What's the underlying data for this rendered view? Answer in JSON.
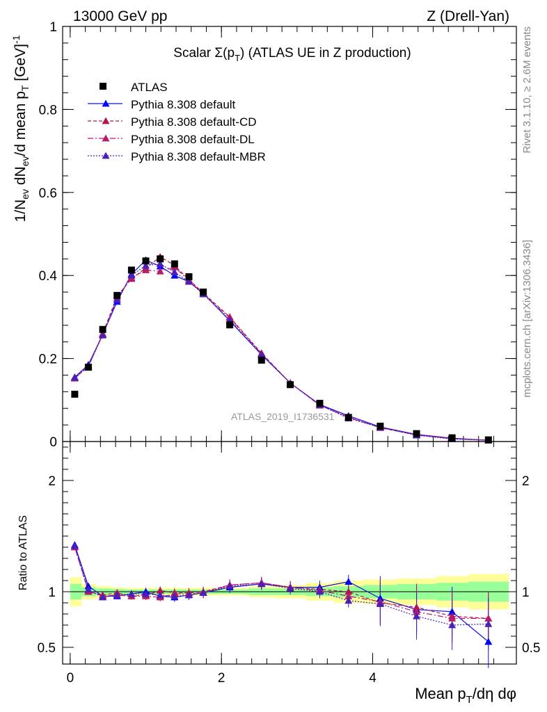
{
  "header": {
    "left": "13000 GeV pp",
    "right": "Z (Drell-Yan)"
  },
  "side": {
    "rivet": "Rivet 3.1.10, ≥ 2.6M events",
    "mcplots": "mcplots.cern.ch [arXiv:1306.3436]"
  },
  "watermark": "ATLAS_2019_I1736531",
  "chart_data": {
    "type": "scatter",
    "title": "Scalar Σ(pT) (ATLAS UE in Z production)",
    "xlabel": "Mean pT/dη dφ",
    "ylabel": "1/Nev dNev/d mean pT [GeV]⁻¹",
    "ratio_ylabel": "Ratio to ATLAS",
    "xlim": [
      -0.1,
      5.9
    ],
    "ylim": [
      0,
      1.0
    ],
    "ratio_ylim": [
      0.35,
      2.35
    ],
    "x_ticks": [
      "0",
      "2",
      "4"
    ],
    "y_ticks": [
      "0",
      "0.2",
      "0.4",
      "0.6",
      "0.8",
      "1"
    ],
    "ratio_ticks": [
      "0.5",
      "1",
      "2"
    ],
    "x": [
      0.06,
      0.24,
      0.43,
      0.62,
      0.81,
      1.0,
      1.19,
      1.38,
      1.57,
      1.76,
      2.11,
      2.53,
      2.91,
      3.3,
      3.68,
      4.1,
      4.58,
      5.05,
      5.53
    ],
    "atlas": [
      0.114,
      0.179,
      0.27,
      0.352,
      0.413,
      0.435,
      0.44,
      0.428,
      0.397,
      0.36,
      0.281,
      0.196,
      0.137,
      0.092,
      0.058,
      0.037,
      0.019,
      0.009,
      0.004
    ],
    "series": [
      {
        "name": "Pythia 8.308 default",
        "color": "#1010e0",
        "dash": "",
        "marker": "#0000ff",
        "values": [
          0.155,
          0.185,
          0.258,
          0.337,
          0.403,
          0.437,
          0.422,
          0.4,
          0.385,
          0.357,
          0.291,
          0.209,
          0.141,
          0.089,
          0.062,
          0.035,
          0.017,
          0.008,
          0.003
        ],
        "ratio": [
          1.42,
          1.05,
          0.96,
          0.96,
          0.98,
          1.0,
          0.96,
          0.95,
          0.97,
          0.99,
          1.04,
          1.07,
          1.04,
          1.04,
          1.09,
          0.94,
          0.84,
          0.82,
          0.55
        ]
      },
      {
        "name": "Pythia 8.308 default-CD",
        "color": "#b0154f",
        "dash": "5,3",
        "marker": "#b0154f",
        "values": [
          0.153,
          0.18,
          0.26,
          0.35,
          0.392,
          0.418,
          0.445,
          0.424,
          0.39,
          0.358,
          0.3,
          0.213,
          0.141,
          0.087,
          0.059,
          0.033,
          0.016,
          0.007,
          0.003
        ],
        "ratio": [
          1.4,
          1.0,
          0.97,
          0.99,
          0.96,
          0.97,
          1.01,
          0.99,
          0.99,
          1.0,
          1.06,
          1.08,
          1.04,
          1.02,
          1.0,
          0.9,
          0.86,
          0.78,
          0.76
        ]
      },
      {
        "name": "Pythia 8.308 default-DL",
        "color": "#c0107a",
        "dash": "8,3,2,3",
        "marker": "#b51d6a",
        "values": [
          0.152,
          0.181,
          0.258,
          0.345,
          0.395,
          0.413,
          0.41,
          0.42,
          0.388,
          0.355,
          0.298,
          0.211,
          0.141,
          0.088,
          0.058,
          0.034,
          0.016,
          0.007,
          0.003
        ],
        "ratio": [
          1.4,
          1.01,
          0.96,
          0.97,
          0.96,
          0.96,
          0.95,
          0.98,
          0.98,
          0.99,
          1.06,
          1.08,
          1.04,
          1.01,
          0.96,
          0.91,
          0.82,
          0.76,
          0.76
        ]
      },
      {
        "name": "Pythia 8.308 default-MBR",
        "color": "#3a1fc0",
        "dash": "2,2",
        "marker": "#4b1fb8",
        "values": [
          0.154,
          0.182,
          0.256,
          0.342,
          0.4,
          0.424,
          0.428,
          0.408,
          0.385,
          0.355,
          0.293,
          0.21,
          0.141,
          0.088,
          0.056,
          0.034,
          0.015,
          0.006,
          0.003
        ],
        "ratio": [
          1.41,
          1.02,
          0.95,
          0.97,
          0.98,
          0.98,
          0.97,
          0.96,
          0.97,
          0.99,
          1.05,
          1.07,
          1.03,
          1.0,
          0.92,
          0.89,
          0.78,
          0.7,
          0.71
        ]
      }
    ],
    "legend": {
      "placement": "top-left",
      "data_label": "ATLAS"
    },
    "uncertainty_bands": {
      "x_edges": [
        0.0,
        0.15,
        0.34,
        0.53,
        0.72,
        0.91,
        1.1,
        1.29,
        1.48,
        1.67,
        1.86,
        2.36,
        2.7,
        3.12,
        3.49,
        3.88,
        4.32,
        4.84,
        5.27,
        5.8
      ],
      "green_half": [
        0.07,
        0.04,
        0.03,
        0.025,
        0.02,
        0.02,
        0.02,
        0.02,
        0.02,
        0.02,
        0.02,
        0.03,
        0.03,
        0.04,
        0.05,
        0.06,
        0.07,
        0.08,
        0.09
      ],
      "yellow_half": [
        0.13,
        0.07,
        0.05,
        0.04,
        0.035,
        0.035,
        0.035,
        0.035,
        0.035,
        0.035,
        0.035,
        0.05,
        0.06,
        0.08,
        0.1,
        0.11,
        0.12,
        0.14,
        0.16
      ]
    }
  }
}
